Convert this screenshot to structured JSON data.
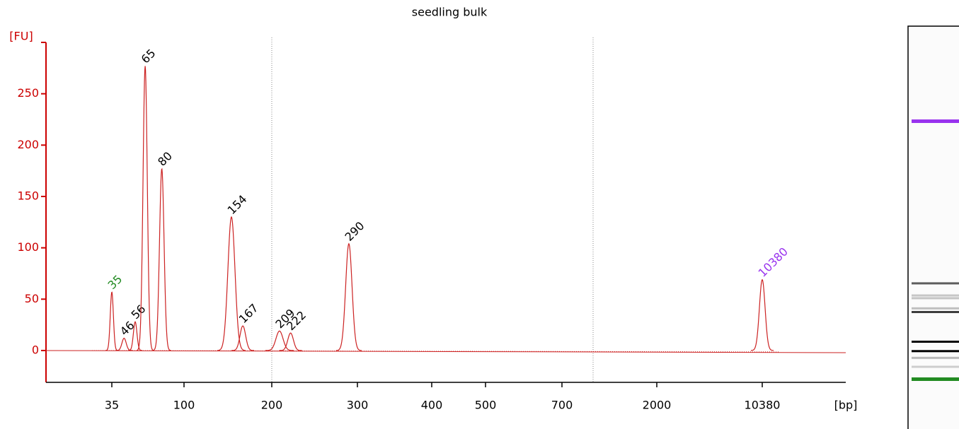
{
  "chart_data": {
    "type": "electropherogram",
    "title": "seedling bulk",
    "ylabel": "[FU]",
    "xlabel": "[bp]",
    "ylim": [
      -31,
      300
    ],
    "yticks": [
      0,
      50,
      100,
      150,
      200,
      250
    ],
    "xticks": [
      35,
      100,
      200,
      300,
      400,
      500,
      700,
      2000,
      10380
    ],
    "trace_color": "#cc2222",
    "axis_color": "#cc0000",
    "peaks": {
      "x": [
        35,
        46,
        56,
        65,
        80,
        154,
        167,
        209,
        222,
        290,
        10380
      ],
      "values": [
        57,
        12,
        28,
        277,
        177,
        130,
        24,
        19,
        17,
        104,
        69
      ],
      "label_colors": [
        "#228b22",
        "#000000",
        "#000000",
        "#000000",
        "#000000",
        "#000000",
        "#000000",
        "#000000",
        "#000000",
        "#000000",
        "#9933ee"
      ]
    }
  }
}
